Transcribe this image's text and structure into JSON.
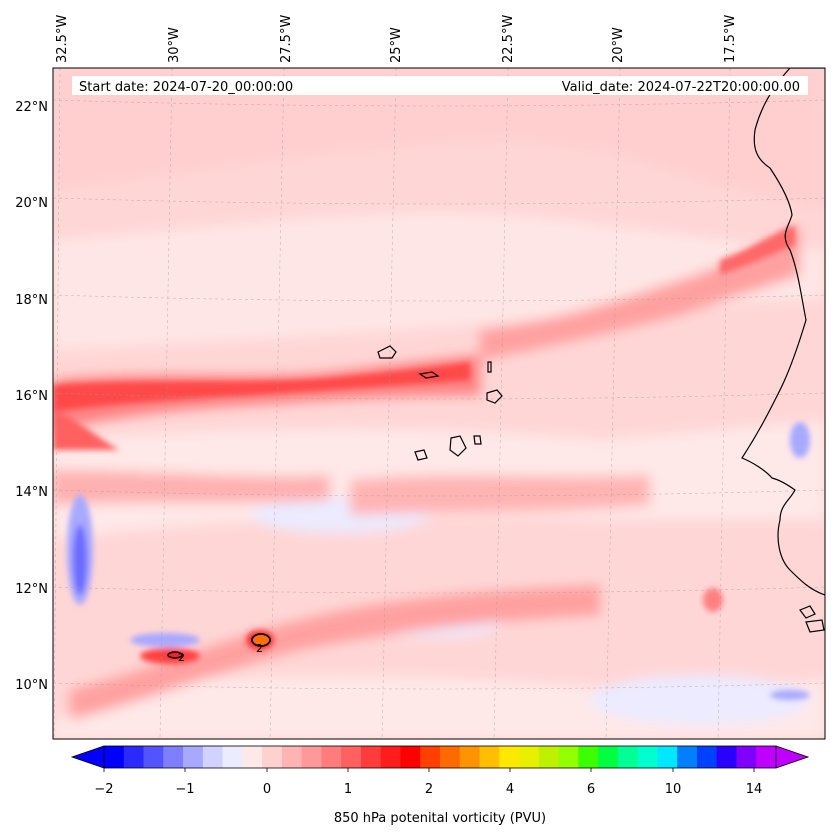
{
  "map": {
    "start_date": "Start date: 2024-07-20_00:00:00",
    "valid_date": "Valid_date: 2024-07-22T20:00:00.00",
    "lon_labels": [
      "32.5°W",
      "30°W",
      "27.5°W",
      "25°W",
      "22.5°W",
      "20°W",
      "17.5°W"
    ],
    "lat_labels": [
      "22°N",
      "20°N",
      "18°N",
      "16°N",
      "14°N",
      "12°N",
      "10°N"
    ],
    "contour_labels": [
      "2",
      "2"
    ]
  },
  "colorbar": {
    "label": "850 hPa potenital vorticity (PVU)",
    "ticks": [
      "−2",
      "−1",
      "0",
      "1",
      "2",
      "4",
      "6",
      "10",
      "14"
    ],
    "colors": [
      "#0000ff",
      "#2a2aff",
      "#5454ff",
      "#7e7eff",
      "#a8a8ff",
      "#d2d2ff",
      "#ececff",
      "#ffe8e8",
      "#ffd0d0",
      "#ffb4b4",
      "#ff9898",
      "#ff7c7c",
      "#ff6060",
      "#ff3c3c",
      "#ff1c1c",
      "#ff0000",
      "#ff4000",
      "#ff6a00",
      "#ff9400",
      "#ffbe00",
      "#ffe800",
      "#e8f000",
      "#bef000",
      "#94ff00",
      "#3cff00",
      "#00ff40",
      "#00ff94",
      "#00ffd0",
      "#00e8ff",
      "#0080ff",
      "#0040ff",
      "#2a00ff",
      "#8000ff",
      "#c000ff"
    ]
  }
}
